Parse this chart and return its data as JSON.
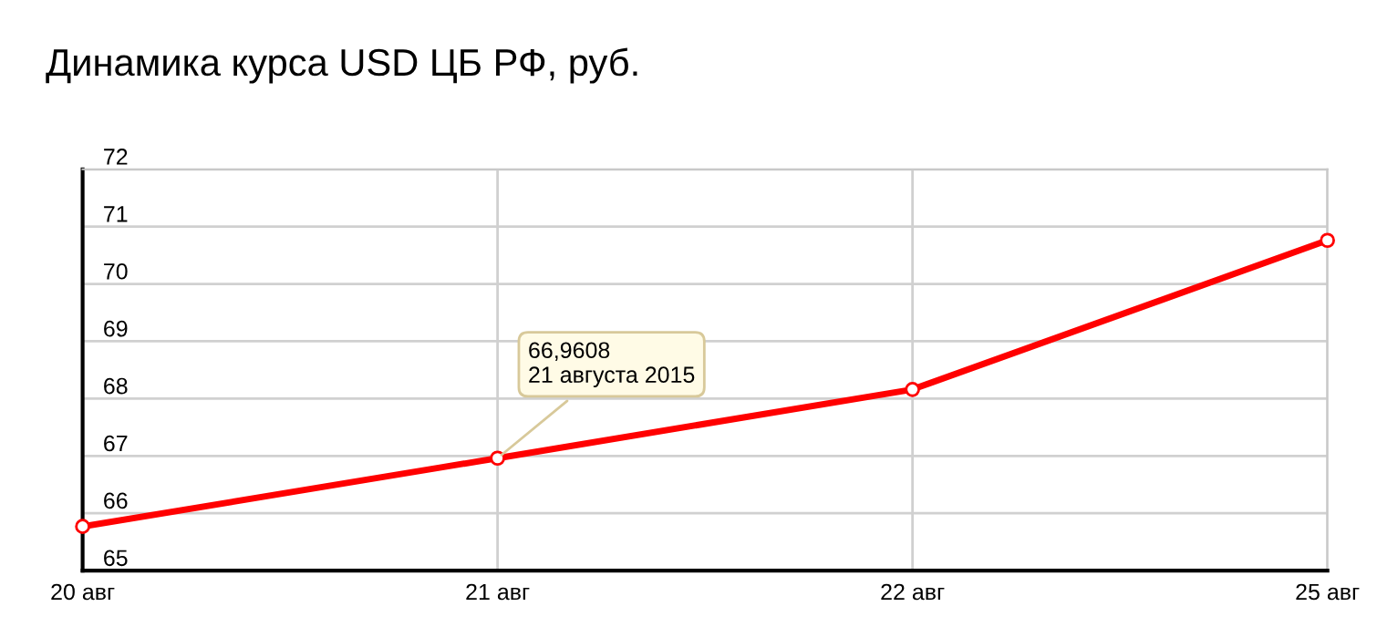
{
  "chart_data": {
    "type": "line",
    "title": "Динамика курса USD ЦБ РФ, руб.",
    "categories": [
      "20 авг",
      "21 авг",
      "22 авг",
      "25 авг"
    ],
    "series": [
      {
        "color": "#ff0000",
        "values": [
          65.77,
          66.9608,
          68.16,
          70.76
        ]
      }
    ],
    "ylim": [
      65,
      72
    ],
    "yticks": [
      65,
      66,
      67,
      68,
      69,
      70,
      71,
      72
    ],
    "grid": true,
    "marker": "circle",
    "line_style": "solid",
    "annotations": [
      {
        "text": "66,9608\n21 августа 2015",
        "x": "21 авг",
        "y": 66.9608
      }
    ]
  }
}
